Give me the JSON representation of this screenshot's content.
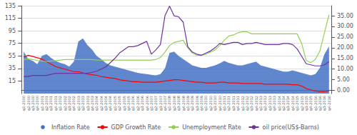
{
  "chart_data": {
    "type": "line",
    "categories": [
      "q1-2000",
      "q2-2000",
      "q3-2000",
      "q4-2000",
      "q1-2001",
      "q2-2001",
      "q3-2001",
      "q4-2001",
      "q1-2002",
      "q2-2002",
      "q3-2002",
      "q4-2002",
      "q1-2003",
      "q2-2003",
      "q3-2003",
      "q4-2003",
      "q1-2004",
      "q2-2004",
      "q3-2004",
      "q4-2004",
      "q1-2005",
      "q2-2005",
      "q3-2005",
      "q4-2005",
      "q1-2006",
      "q2-2006",
      "q3-2006",
      "q4-2006",
      "q1-2007",
      "q2-2007",
      "q3-2007",
      "q4-2007",
      "q1-2008",
      "q2-2008",
      "q3-2008",
      "q4-2008",
      "q1-2009",
      "q2-2009",
      "q3-2009",
      "q4-2009",
      "q1-2010",
      "q2-2010",
      "q3-2010",
      "q4-2010",
      "q1-2011",
      "q2-2011",
      "q3-2011",
      "q4-2011",
      "q1-2012",
      "q2-2012",
      "q3-2012",
      "q4-2012",
      "q1-2013",
      "q2-2013",
      "q3-2013",
      "q4-2013",
      "q1-2014",
      "q2-2014",
      "q3-2014",
      "q4-2014",
      "q1-2015",
      "q2-2015",
      "q3-2015",
      "q4-2015",
      "q1-2016",
      "q2-2016",
      "q3-2016",
      "q4-2016"
    ],
    "series": [
      {
        "name": "Inflation Rate",
        "type": "area",
        "color": "#4472C4",
        "values": [
          62,
          50,
          47,
          42,
          55,
          58,
          52,
          47,
          44,
          42,
          38,
          46,
          78,
          83,
          72,
          65,
          55,
          50,
          44,
          40,
          38,
          36,
          34,
          32,
          30,
          28,
          27,
          26,
          25,
          24,
          26,
          35,
          60,
          62,
          55,
          50,
          45,
          40,
          38,
          36,
          36,
          38,
          40,
          43,
          47,
          44,
          42,
          40,
          40,
          42,
          44,
          46,
          40,
          38,
          36,
          34,
          32,
          30,
          30,
          32,
          30,
          28,
          26,
          24,
          26,
          36,
          58,
          70
        ]
      },
      {
        "name": "GDP Growth Rate",
        "type": "line",
        "color": "#FF0000",
        "values": [
          53,
          56,
          54,
          52,
          50,
          46,
          42,
          38,
          36,
          34,
          32,
          30,
          30,
          28,
          26,
          25,
          24,
          22,
          21,
          20,
          19,
          17,
          16,
          15,
          14,
          14,
          13,
          13,
          13,
          13,
          14,
          15,
          16,
          17,
          17,
          16,
          15,
          14,
          13,
          13,
          12,
          12,
          12,
          13,
          13,
          12,
          12,
          12,
          11,
          11,
          11,
          11,
          11,
          10,
          10,
          10,
          10,
          10,
          10,
          9,
          9,
          7,
          3,
          1,
          -1,
          -2,
          -2,
          -1
        ]
      },
      {
        "name": "Unemployment Rate",
        "type": "line",
        "axis": "y2",
        "color": "#92D050",
        "values": [
          14.5,
          14.8,
          14.5,
          14.0,
          13.8,
          13.5,
          13.8,
          14.0,
          14.2,
          14.5,
          14.5,
          14.5,
          14.5,
          14.5,
          14.5,
          14.5,
          14.2,
          14.2,
          14.2,
          14.2,
          14.2,
          14.2,
          14.2,
          14.2,
          14.2,
          14.2,
          14.2,
          14.2,
          14.2,
          14.5,
          15.5,
          18.0,
          21.0,
          22.5,
          23.0,
          23.5,
          20.0,
          17.5,
          16.5,
          16.5,
          17.0,
          18.0,
          19.0,
          21.0,
          23.5,
          25.5,
          26.0,
          27.0,
          27.5,
          27.5,
          26.5,
          26.5,
          26.5,
          26.5,
          26.5,
          26.5,
          26.5,
          26.5,
          26.5,
          26.5,
          26.5,
          22.0,
          14.0,
          13.0,
          14.5,
          18.5,
          27.0,
          35.5
        ]
      },
      {
        "name": "oil price(US$-Barns)",
        "type": "line",
        "axis": "y2",
        "color": "#7030A0",
        "values": [
          6.5,
          6.5,
          7.0,
          7.0,
          7.0,
          7.0,
          7.5,
          8.0,
          8.0,
          8.0,
          8.0,
          8.0,
          8.0,
          8.0,
          8.0,
          8.5,
          9.0,
          10.0,
          11.0,
          13.0,
          15.0,
          17.5,
          19.0,
          20.5,
          20.5,
          21.0,
          22.0,
          23.0,
          17.0,
          19.0,
          21.5,
          35.0,
          39.5,
          35.0,
          34.5,
          32.0,
          20.5,
          18.0,
          17.0,
          16.5,
          17.5,
          18.5,
          20.0,
          22.0,
          21.5,
          22.0,
          22.5,
          22.5,
          21.5,
          22.0,
          22.0,
          22.5,
          22.0,
          21.5,
          21.5,
          21.5,
          21.5,
          22.0,
          22.0,
          21.5,
          19.5,
          16.0,
          12.5,
          12.0,
          11.5,
          11.5,
          12.0,
          13.5
        ]
      }
    ],
    "ylim": [
      -5,
      135
    ],
    "yticks": [
      15,
      35,
      55,
      75,
      95,
      115,
      135
    ],
    "y2lim": [
      -1.47,
      39.7
    ],
    "y2ticks": [
      {
        "value": 0,
        "label": "0.00"
      },
      {
        "value": 5,
        "label": "5.00"
      },
      {
        "value": 10,
        "label": "10.00"
      },
      {
        "value": 15,
        "label": "15.00"
      },
      {
        "value": 20,
        "label": "20.00"
      },
      {
        "value": 25,
        "label": "25.00"
      },
      {
        "value": 30,
        "label": "30.00"
      },
      {
        "value": 35,
        "label": "35.00"
      }
    ],
    "grid": true,
    "legend": "bottom"
  }
}
